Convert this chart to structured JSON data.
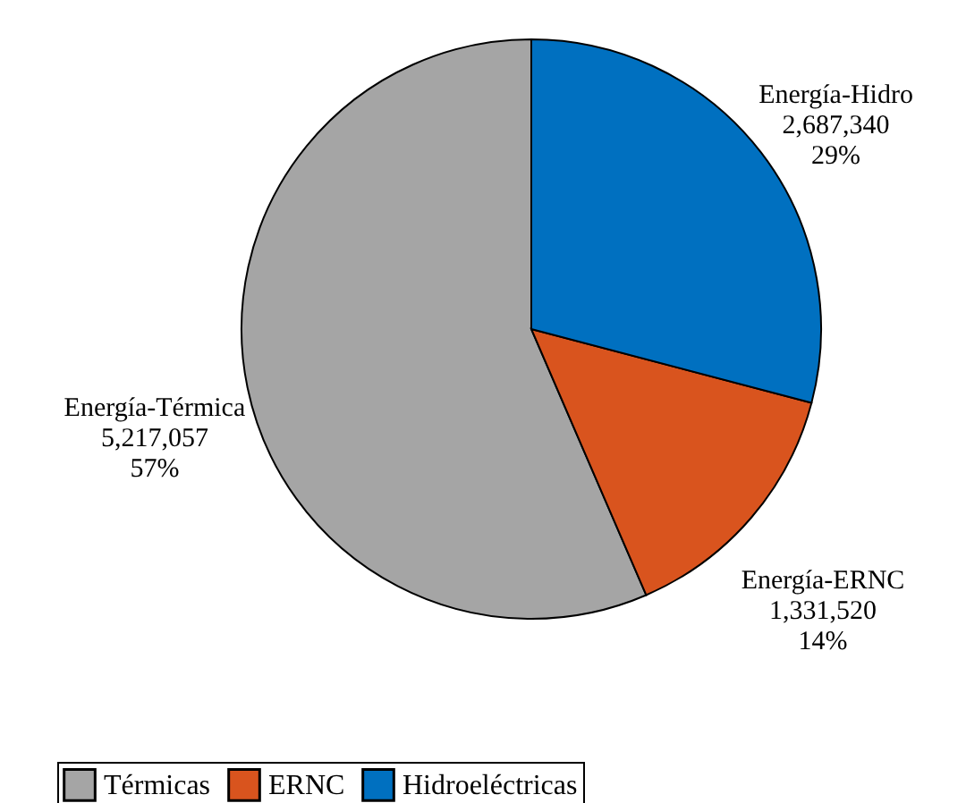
{
  "chart_data": {
    "type": "pie",
    "categories": [
      "Térmicas",
      "ERNC",
      "Hidroeléctricas"
    ],
    "values": [
      5217057,
      1331520,
      2687340
    ],
    "colors": [
      "#a5a5a5",
      "#d9541e",
      "#0070c0"
    ],
    "value_labels": [
      "Energía-Térmica\n5,217,057\n57%",
      "Energía-ERNC\n1,331,520\n14%",
      "Energía-Hidro\n2,687,340\n29%"
    ],
    "legend": "bottom"
  }
}
